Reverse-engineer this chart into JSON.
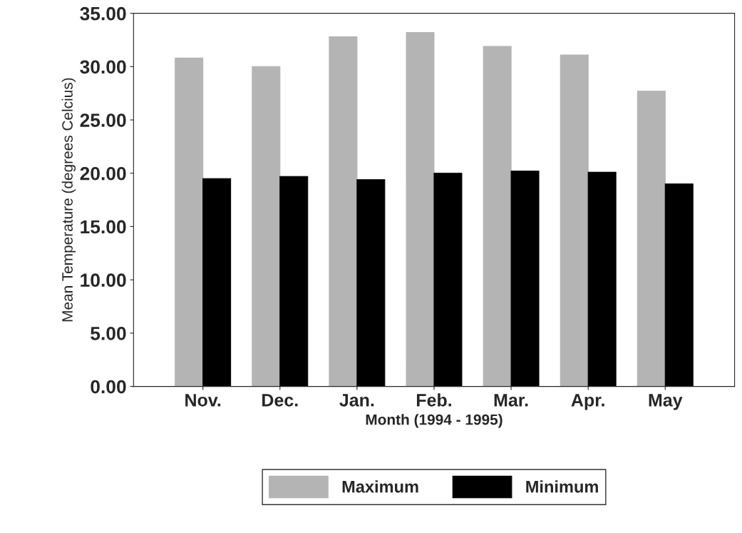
{
  "chart_data": {
    "type": "bar",
    "xlabel": "Month (1994 - 1995)",
    "ylabel": "Mean Temperature (degrees Celcius)",
    "categories": [
      "Nov.",
      "Dec.",
      "Jan.",
      "Feb.",
      "Mar.",
      "Apr.",
      "May"
    ],
    "series": [
      {
        "name": "Maximum",
        "color": "#b4b4b4",
        "values": [
          30.8,
          30.0,
          32.8,
          33.2,
          31.9,
          31.1,
          27.7
        ]
      },
      {
        "name": "Minimum",
        "color": "#000000",
        "values": [
          19.5,
          19.7,
          19.4,
          20.0,
          20.2,
          20.1,
          19.0
        ]
      }
    ],
    "ylim": [
      0,
      35
    ],
    "yticks": [
      {
        "value": 0,
        "label": "0.00"
      },
      {
        "value": 5,
        "label": "5.00"
      },
      {
        "value": 10,
        "label": "10.00"
      },
      {
        "value": 15,
        "label": "15.00"
      },
      {
        "value": 20,
        "label": "20.00"
      },
      {
        "value": 25,
        "label": "25.00"
      },
      {
        "value": 30,
        "label": "30.00"
      },
      {
        "value": 35,
        "label": "35.00"
      }
    ],
    "grid": false,
    "legend": "bottom"
  }
}
